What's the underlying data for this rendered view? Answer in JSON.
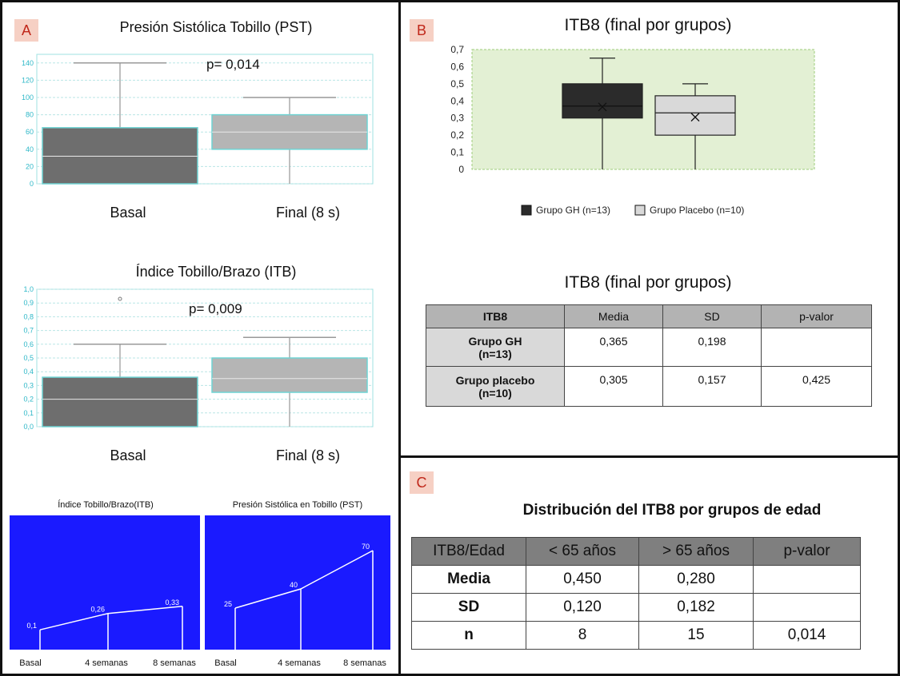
{
  "panel_a": {
    "tag": "A",
    "pst": {
      "title": "Presión Sistólica Tobillo (PST)",
      "pvalue": "p= 0,014",
      "ticks": [
        "0",
        "20",
        "40",
        "60",
        "80",
        "100",
        "120",
        "140"
      ],
      "categories": [
        "Basal",
        "Final (8 s)"
      ]
    },
    "itb": {
      "title": "Índice Tobillo/Brazo (ITB)",
      "pvalue": "p= 0,009",
      "ticks": [
        "0,0",
        "0,1",
        "0,2",
        "0,3",
        "0,4",
        "0,5",
        "0,6",
        "0,7",
        "0,8",
        "0,9",
        "1,0"
      ],
      "categories": [
        "Basal",
        "Final (8 s)"
      ]
    },
    "line_itb": {
      "title": "Índice Tobillo/Brazo(ITB)",
      "labels": [
        "0,1",
        "0,26",
        "0,33"
      ],
      "x_labels": [
        "Basal",
        "4 semanas",
        "8 semanas"
      ]
    },
    "line_pst": {
      "title": "Presión Sistólica en Tobillo (PST)",
      "labels": [
        "25",
        "40",
        "70"
      ],
      "x_labels": [
        "Basal",
        "4 semanas",
        "8 semanas"
      ]
    }
  },
  "panel_b": {
    "tag": "B",
    "chart_title": "ITB8 (final por grupos)",
    "ticks": [
      "0",
      "0,1",
      "0,2",
      "0,3",
      "0,4",
      "0,5",
      "0,6",
      "0,7"
    ],
    "legend": [
      "Grupo GH (n=13)",
      "Grupo Placebo (n=10)"
    ],
    "table_title": "ITB8 (final por grupos)",
    "table": {
      "headers": [
        "ITB8",
        "Media",
        "SD",
        "p-valor"
      ],
      "rows": [
        {
          "label": "Grupo GH\n(n=13)",
          "media": "0,365",
          "sd": "0,198",
          "p": ""
        },
        {
          "label": "Grupo placebo\n(n=10)",
          "media": "0,305",
          "sd": "0,157",
          "p": "0,425"
        }
      ]
    }
  },
  "panel_c": {
    "tag": "C",
    "title": "Distribución del ITB8 por grupos de edad",
    "table": {
      "headers": [
        "ITB8/Edad",
        "< 65 años",
        "> 65 años",
        "p-valor"
      ],
      "rows": [
        {
          "label": "Media",
          "a": "0,450",
          "b": "0,280",
          "p": ""
        },
        {
          "label": "SD",
          "a": "0,120",
          "b": "0,182",
          "p": ""
        },
        {
          "label": "n",
          "a": "8",
          "b": "15",
          "p": "0,014"
        }
      ]
    }
  },
  "colors": {
    "dark_box": "#6e6e6e",
    "light_box": "#b5b5b5",
    "box_border": "#6fd3d3",
    "gh_box": "#2b2b2b",
    "placebo_box": "#d9d9d9",
    "plot_green": "#e3f0d4",
    "blue_panel": "#1a1aff"
  },
  "chart_data": [
    {
      "type": "box",
      "title": "Presión Sistólica Tobillo (PST)",
      "categories": [
        "Basal",
        "Final (8 s)"
      ],
      "boxes": [
        {
          "name": "Basal",
          "min": 0,
          "q1": 0,
          "median": 32,
          "q3": 65,
          "max": 140
        },
        {
          "name": "Final (8 s)",
          "min": 0,
          "q1": 40,
          "median": 60,
          "q3": 80,
          "max": 100
        }
      ],
      "ylim": [
        0,
        150
      ],
      "annotation": "p= 0,014"
    },
    {
      "type": "box",
      "title": "Índice Tobillo/Brazo (ITB)",
      "categories": [
        "Basal",
        "Final (8 s)"
      ],
      "boxes": [
        {
          "name": "Basal",
          "min": 0,
          "q1": 0,
          "median": 0.2,
          "q3": 0.36,
          "max": 0.6,
          "outliers": [
            0.93
          ]
        },
        {
          "name": "Final (8 s)",
          "min": 0,
          "q1": 0.25,
          "median": 0.35,
          "q3": 0.5,
          "max": 0.65
        }
      ],
      "ylim": [
        0,
        1.0
      ],
      "annotation": "p= 0,009"
    },
    {
      "type": "line",
      "title": "Índice Tobillo/Brazo(ITB)",
      "x": [
        "Basal",
        "4 semanas",
        "8 semanas"
      ],
      "values": [
        0.1,
        0.26,
        0.33
      ]
    },
    {
      "type": "line",
      "title": "Presión Sistólica en Tobillo (PST)",
      "x": [
        "Basal",
        "4 semanas",
        "8 semanas"
      ],
      "values": [
        25,
        40,
        70
      ]
    },
    {
      "type": "box",
      "title": "ITB8 (final por grupos)",
      "series": [
        {
          "name": "Grupo GH (n=13)",
          "min": 0,
          "q1": 0.3,
          "median": 0.37,
          "q3": 0.5,
          "max": 0.65,
          "mean": 0.365
        },
        {
          "name": "Grupo Placebo (n=10)",
          "min": 0,
          "q1": 0.2,
          "median": 0.33,
          "q3": 0.43,
          "max": 0.5,
          "mean": 0.305
        }
      ],
      "ylim": [
        0,
        0.7
      ]
    }
  ]
}
